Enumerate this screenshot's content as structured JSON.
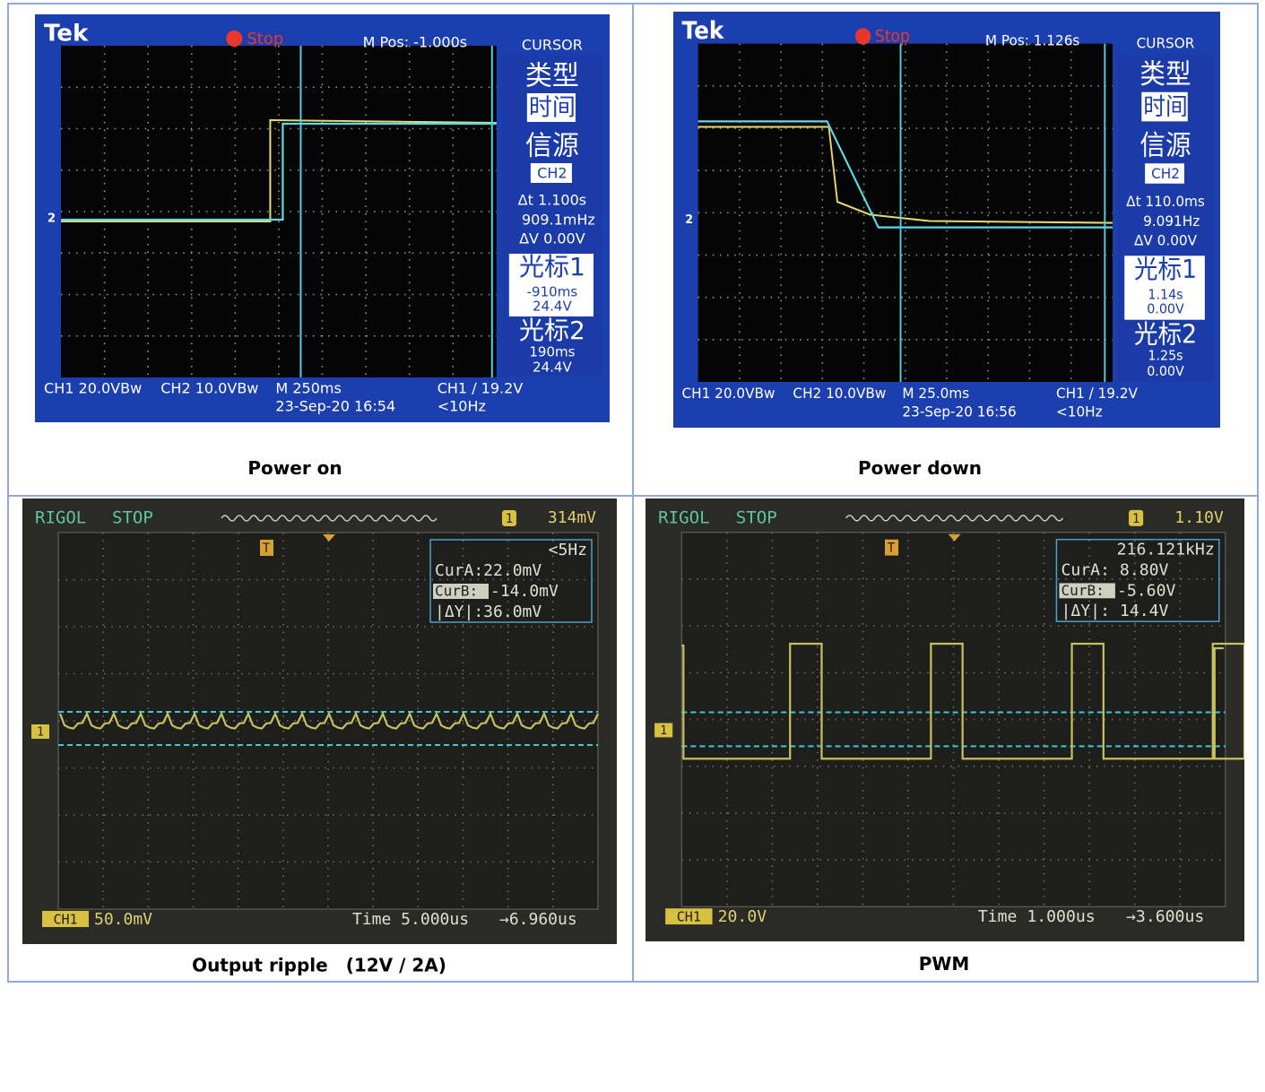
{
  "cells": [
    {
      "caption": "Power on",
      "screen": {
        "brand": "Tek",
        "status": "Stop",
        "position": "M Pos: -1.000s",
        "menu": "CURSOR",
        "type_label": "类型",
        "type_value": "时间",
        "source_label": "信源",
        "source_value": "CH2",
        "delta_t": "Δt 1.100s",
        "freq": "909.1mHz",
        "delta_v": "ΔV 0.00V",
        "cursor1_label": "光标1",
        "cursor1_time": "-910ms",
        "cursor1_volt": "24.4V",
        "cursor2_label": "光标2",
        "cursor2_time": "190ms",
        "cursor2_volt": "24.4V",
        "marker": "2",
        "ch1": "CH1  20.0VBw",
        "ch2": "CH2  10.0VBw",
        "timebase": "M 250ms",
        "date": "23-Sep-20 16:54",
        "trigger": "CH1 ∕ 19.2V",
        "trigger_freq": "<10Hz"
      }
    },
    {
      "caption": "Power down",
      "screen": {
        "brand": "Tek",
        "status": "Stop",
        "position": "M Pos: 1.126s",
        "menu": "CURSOR",
        "type_label": "类型",
        "type_value": "时间",
        "source_label": "信源",
        "source_value": "CH2",
        "delta_t": "Δt 110.0ms",
        "freq": "9.091Hz",
        "delta_v": "ΔV 0.00V",
        "cursor1_label": "光标1",
        "cursor1_time": "1.14s",
        "cursor1_volt": "0.00V",
        "cursor2_label": "光标2",
        "cursor2_time": "1.25s",
        "cursor2_volt": "0.00V",
        "marker": "2",
        "ch1": "CH1  20.0VBw",
        "ch2": "CH2  10.0VBw",
        "timebase": "M 25.0ms",
        "date": "23-Sep-20 16:56",
        "trigger": "CH1 ∕ 19.2V",
        "trigger_freq": "<10Hz"
      }
    },
    {
      "caption": "Output ripple　(12V / 2A)",
      "screen": {
        "brand": "RIGOL",
        "status": "STOP",
        "trigger_level": "314mV",
        "trigger_channel": "1",
        "trigger_marker": "T",
        "trigger_freq": "<5Hz",
        "cur_a": "CurA:22.0mV",
        "cur_b_label": "CurB:",
        "cur_b": "-14.0mV",
        "delta_y": "|ΔY|:36.0mV",
        "channel_marker": "1",
        "channel": "CH1",
        "scale": "50.0mV",
        "time": "Time 5.000us",
        "offset": "→6.960us"
      }
    },
    {
      "caption": "PWM",
      "screen": {
        "brand": "RIGOL",
        "status": "STOP",
        "trigger_level": "1.10V",
        "trigger_channel": "1",
        "trigger_marker": "T",
        "trigger_freq": "216.121kHz",
        "cur_a": "CurA: 8.80V",
        "cur_b_label": "CurB:",
        "cur_b": "-5.60V",
        "delta_y": "|ΔY|: 14.4V",
        "channel_marker": "1",
        "channel": "CH1",
        "scale": "20.0V",
        "time": "Time 1.000us",
        "offset": "→3.600us"
      }
    }
  ]
}
